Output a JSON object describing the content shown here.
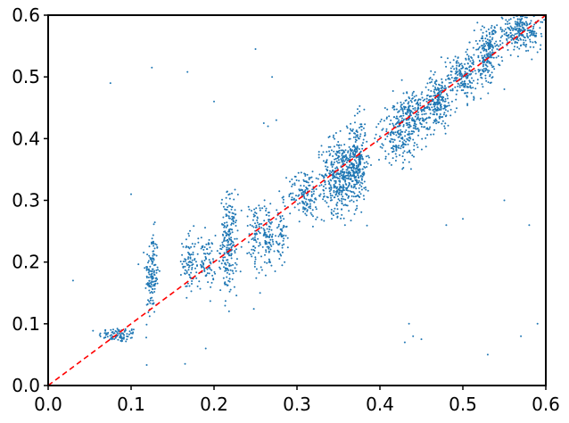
{
  "chart_data": {
    "type": "scatter",
    "title": "",
    "xlabel": "",
    "ylabel": "",
    "xlim": [
      0.0,
      0.6
    ],
    "ylim": [
      0.0,
      0.6
    ],
    "grid": false,
    "x_ticks": [
      "0.0",
      "0.1",
      "0.2",
      "0.3",
      "0.4",
      "0.5",
      "0.6"
    ],
    "y_ticks": [
      "0.0",
      "0.1",
      "0.2",
      "0.3",
      "0.4",
      "0.5",
      "0.6"
    ],
    "series": [
      {
        "style": "points",
        "color": "#1f77b4",
        "clusters": [
          {
            "x": 0.085,
            "y": 0.082,
            "sx": 0.012,
            "sy": 0.006,
            "n": 90
          },
          {
            "x": 0.125,
            "y": 0.18,
            "sx": 0.004,
            "sy": 0.035,
            "n": 150
          },
          {
            "x": 0.17,
            "y": 0.2,
            "sx": 0.004,
            "sy": 0.025,
            "n": 80
          },
          {
            "x": 0.19,
            "y": 0.2,
            "sx": 0.006,
            "sy": 0.022,
            "n": 80
          },
          {
            "x": 0.218,
            "y": 0.23,
            "sx": 0.005,
            "sy": 0.04,
            "n": 220
          },
          {
            "x": 0.25,
            "y": 0.24,
            "sx": 0.004,
            "sy": 0.03,
            "n": 80
          },
          {
            "x": 0.265,
            "y": 0.24,
            "sx": 0.004,
            "sy": 0.025,
            "n": 80
          },
          {
            "x": 0.28,
            "y": 0.24,
            "sx": 0.004,
            "sy": 0.025,
            "n": 60
          },
          {
            "x": 0.31,
            "y": 0.31,
            "sx": 0.01,
            "sy": 0.02,
            "n": 150
          },
          {
            "x": 0.35,
            "y": 0.34,
            "sx": 0.01,
            "sy": 0.03,
            "n": 350
          },
          {
            "x": 0.372,
            "y": 0.36,
            "sx": 0.006,
            "sy": 0.035,
            "n": 300
          },
          {
            "x": 0.42,
            "y": 0.4,
            "sx": 0.012,
            "sy": 0.02,
            "n": 150
          },
          {
            "x": 0.44,
            "y": 0.44,
            "sx": 0.012,
            "sy": 0.02,
            "n": 250
          },
          {
            "x": 0.47,
            "y": 0.46,
            "sx": 0.008,
            "sy": 0.02,
            "n": 200
          },
          {
            "x": 0.5,
            "y": 0.5,
            "sx": 0.012,
            "sy": 0.02,
            "n": 200
          },
          {
            "x": 0.53,
            "y": 0.54,
            "sx": 0.008,
            "sy": 0.02,
            "n": 200
          },
          {
            "x": 0.57,
            "y": 0.575,
            "sx": 0.015,
            "sy": 0.015,
            "n": 250
          }
        ],
        "outliers": [
          [
            0.075,
            0.49
          ],
          [
            0.125,
            0.515
          ],
          [
            0.168,
            0.508
          ],
          [
            0.25,
            0.545
          ],
          [
            0.27,
            0.5
          ],
          [
            0.265,
            0.42
          ],
          [
            0.275,
            0.43
          ],
          [
            0.26,
            0.425
          ],
          [
            0.44,
            0.08
          ],
          [
            0.43,
            0.07
          ],
          [
            0.45,
            0.075
          ],
          [
            0.435,
            0.1
          ],
          [
            0.58,
            0.26
          ],
          [
            0.53,
            0.05
          ],
          [
            0.59,
            0.1
          ],
          [
            0.03,
            0.17
          ],
          [
            0.1,
            0.31
          ],
          [
            0.5,
            0.27
          ],
          [
            0.55,
            0.3
          ],
          [
            0.6,
            0.3
          ],
          [
            0.165,
            0.035
          ],
          [
            0.19,
            0.06
          ],
          [
            0.57,
            0.08
          ],
          [
            0.48,
            0.26
          ],
          [
            0.2,
            0.46
          ],
          [
            0.36,
            0.42
          ],
          [
            0.59,
            0.54
          ],
          [
            0.55,
            0.48
          ]
        ]
      },
      {
        "style": "dashed-line",
        "color": "#ff0000",
        "x": [
          0.0,
          0.6
        ],
        "y": [
          0.0,
          0.6
        ]
      }
    ]
  }
}
